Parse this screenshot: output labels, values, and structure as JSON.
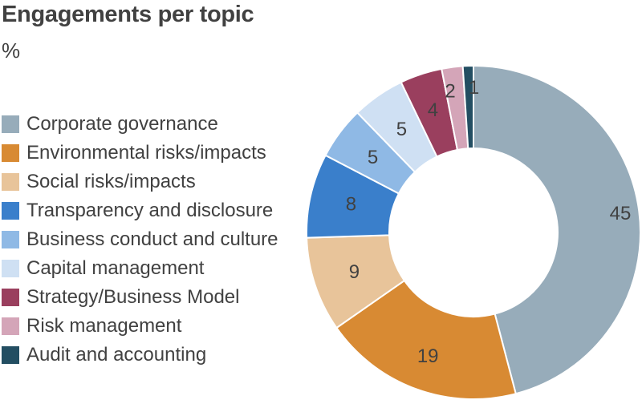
{
  "chart_data": {
    "type": "pie",
    "title": "Engagements per topic",
    "unit_label": "%",
    "donut": true,
    "legend_position": "left",
    "slices": [
      {
        "label": "Corporate governance",
        "value": 45,
        "value_label": "45",
        "color": "#97acba"
      },
      {
        "label": "Environmental risks/impacts",
        "value": 19,
        "value_label": "19",
        "color": "#d88a33"
      },
      {
        "label": "Social risks/impacts",
        "value": 9,
        "value_label": "9",
        "color": "#e8c49a"
      },
      {
        "label": "Transparency and disclosure",
        "value": 8,
        "value_label": "8",
        "color": "#3a7fcb"
      },
      {
        "label": "Business conduct and culture",
        "value": 5,
        "value_label": "5",
        "color": "#8fb9e5"
      },
      {
        "label": "Capital management",
        "value": 5,
        "value_label": "5",
        "color": "#cfe0f3"
      },
      {
        "label": "Strategy/Business Model",
        "value": 4,
        "value_label": "4",
        "color": "#9a3f5e"
      },
      {
        "label": "Risk management",
        "value": 2,
        "value_label": "2",
        "color": "#d4a5b8"
      },
      {
        "label": "Audit and accounting",
        "value": 1,
        "value_label": "1",
        "color": "#234e62"
      }
    ]
  }
}
